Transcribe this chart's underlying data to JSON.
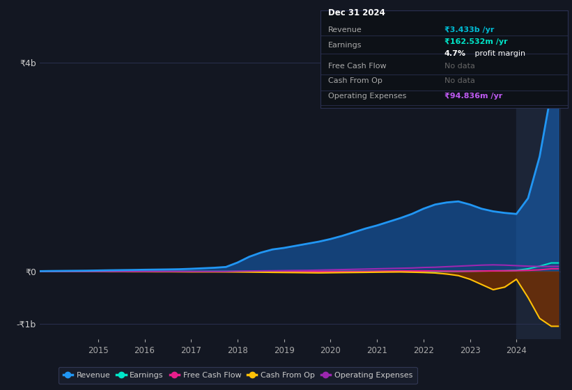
{
  "bg_color": "#131722",
  "highlight_bg_color": "#1c2537",
  "grid_color": "#2a3050",
  "title_box": {
    "date": "Dec 31 2024",
    "revenue_label": "Revenue",
    "revenue_value": "₹3.433b /yr",
    "revenue_color": "#00bcd4",
    "earnings_label": "Earnings",
    "earnings_value": "₹162.532m /yr",
    "earnings_color": "#00e5c8",
    "profit_margin_bold": "4.7%",
    "profit_margin_text": " profit margin",
    "free_cash_flow_label": "Free Cash Flow",
    "free_cash_flow_value": "No data",
    "cash_from_op_label": "Cash From Op",
    "cash_from_op_value": "No data",
    "op_expenses_label": "Operating Expenses",
    "op_expenses_value": "₹94.836m /yr",
    "op_expenses_color": "#bf5af2"
  },
  "years": [
    2013.75,
    2014.0,
    2014.25,
    2014.5,
    2014.75,
    2015.0,
    2015.25,
    2015.5,
    2015.75,
    2016.0,
    2016.25,
    2016.5,
    2016.75,
    2017.0,
    2017.25,
    2017.5,
    2017.75,
    2018.0,
    2018.25,
    2018.5,
    2018.75,
    2019.0,
    2019.25,
    2019.5,
    2019.75,
    2020.0,
    2020.25,
    2020.5,
    2020.75,
    2021.0,
    2021.25,
    2021.5,
    2021.75,
    2022.0,
    2022.25,
    2022.5,
    2022.75,
    2023.0,
    2023.25,
    2023.5,
    2023.75,
    2024.0,
    2024.25,
    2024.5,
    2024.75,
    2024.9
  ],
  "revenue": [
    5000000.0,
    8000000.0,
    10000000.0,
    12000000.0,
    14000000.0,
    18000000.0,
    22000000.0,
    25000000.0,
    28000000.0,
    32000000.0,
    35000000.0,
    38000000.0,
    42000000.0,
    50000000.0,
    60000000.0,
    70000000.0,
    85000000.0,
    170000000.0,
    280000000.0,
    360000000.0,
    420000000.0,
    450000000.0,
    490000000.0,
    530000000.0,
    570000000.0,
    620000000.0,
    680000000.0,
    750000000.0,
    820000000.0,
    880000000.0,
    950000000.0,
    1020000000.0,
    1100000000.0,
    1200000000.0,
    1280000000.0,
    1320000000.0,
    1340000000.0,
    1280000000.0,
    1200000000.0,
    1150000000.0,
    1120000000.0,
    1100000000.0,
    1400000000.0,
    2200000000.0,
    3433000000.0,
    3433000000.0
  ],
  "earnings": [
    0,
    0,
    0,
    0,
    0,
    0,
    0,
    0,
    0,
    0,
    0,
    0,
    0,
    0,
    0,
    0,
    0,
    0,
    0,
    0,
    0,
    0,
    0,
    0,
    0,
    0,
    0,
    0,
    0,
    0,
    0,
    0,
    0,
    0,
    0,
    0,
    0,
    5000000.0,
    8000000.0,
    10000000.0,
    12000000.0,
    20000000.0,
    50000000.0,
    100000000.0,
    162000000.0,
    162000000.0
  ],
  "free_cash_flow": [
    0,
    0,
    0,
    0,
    0,
    0,
    0,
    0,
    0,
    -2000000.0,
    -3000000.0,
    -3000000.0,
    -4000000.0,
    -5000000.0,
    -5000000.0,
    -5000000.0,
    -5000000.0,
    -5000000.0,
    -5000000.0,
    -5000000.0,
    -5000000.0,
    -5000000.0,
    -5000000.0,
    -5000000.0,
    -5000000.0,
    -3000000.0,
    -2000000.0,
    -1000000.0,
    0,
    5000000.0,
    8000000.0,
    10000000.0,
    10000000.0,
    10000000.0,
    8000000.0,
    5000000.0,
    3000000.0,
    5000000.0,
    8000000.0,
    10000000.0,
    12000000.0,
    15000000.0,
    20000000.0,
    30000000.0,
    50000000.0,
    50000000.0
  ],
  "cash_from_op": [
    0,
    0,
    0,
    0,
    0,
    -3000000.0,
    -4000000.0,
    -4000000.0,
    -5000000.0,
    -5000000.0,
    -6000000.0,
    -6000000.0,
    -7000000.0,
    -8000000.0,
    -8000000.0,
    -8000000.0,
    -9000000.0,
    -10000000.0,
    -12000000.0,
    -15000000.0,
    -18000000.0,
    -20000000.0,
    -22000000.0,
    -25000000.0,
    -28000000.0,
    -25000000.0,
    -22000000.0,
    -20000000.0,
    -18000000.0,
    -15000000.0,
    -12000000.0,
    -10000000.0,
    -15000000.0,
    -20000000.0,
    -30000000.0,
    -50000000.0,
    -80000000.0,
    -150000000.0,
    -250000000.0,
    -350000000.0,
    -300000000.0,
    -150000000.0,
    -500000000.0,
    -900000000.0,
    -1050000000.0,
    -1050000000.0
  ],
  "operating_expenses": [
    0,
    0,
    0,
    0,
    0,
    0,
    0,
    0,
    0,
    0,
    0,
    0,
    0,
    0,
    0,
    0,
    0,
    5000000.0,
    8000000.0,
    10000000.0,
    12000000.0,
    15000000.0,
    18000000.0,
    20000000.0,
    25000000.0,
    30000000.0,
    35000000.0,
    40000000.0,
    45000000.0,
    50000000.0,
    55000000.0,
    60000000.0,
    65000000.0,
    75000000.0,
    80000000.0,
    90000000.0,
    100000000.0,
    110000000.0,
    120000000.0,
    125000000.0,
    120000000.0,
    110000000.0,
    100000000.0,
    95000000.0,
    95000000.0,
    95000000.0
  ],
  "revenue_color": "#2196f3",
  "earnings_color": "#00e5c8",
  "free_cash_flow_color": "#e91e8c",
  "cash_from_op_color": "#ffc107",
  "operating_expenses_color": "#9c27b0",
  "revenue_fill_color": "#1565c0",
  "cfo_fill_color": "#7b3000",
  "highlight_start": 2024.0,
  "ylim": [
    -1300000000.0,
    4300000000.0
  ],
  "yticks": [
    -1000000000.0,
    0,
    4000000000.0
  ],
  "ytick_labels": [
    "-₹1b",
    "₹0",
    "₹4b"
  ],
  "xtick_years": [
    2015,
    2016,
    2017,
    2018,
    2019,
    2020,
    2021,
    2022,
    2023,
    2024
  ],
  "legend_items": [
    {
      "label": "Revenue",
      "color": "#2196f3"
    },
    {
      "label": "Earnings",
      "color": "#00e5c8"
    },
    {
      "label": "Free Cash Flow",
      "color": "#e91e8c"
    },
    {
      "label": "Cash From Op",
      "color": "#ffc107"
    },
    {
      "label": "Operating Expenses",
      "color": "#9c27b0"
    }
  ]
}
